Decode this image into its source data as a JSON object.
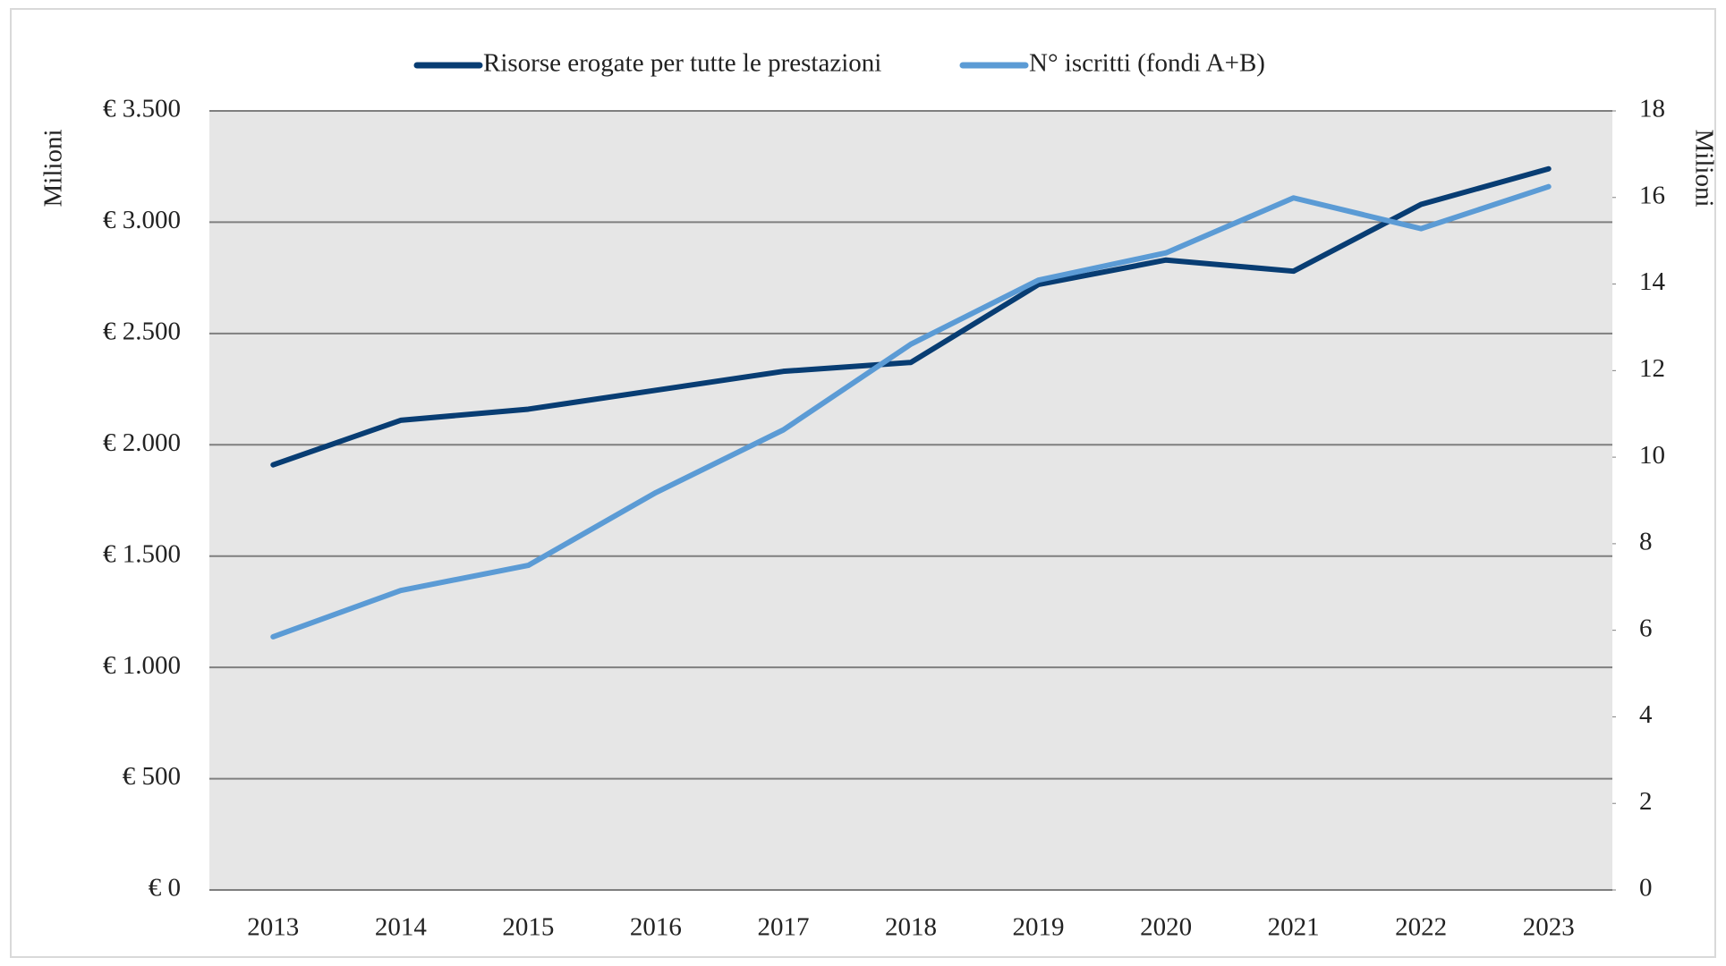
{
  "chart_data": {
    "type": "line",
    "categories": [
      "2013",
      "2014",
      "2015",
      "2016",
      "2017",
      "2018",
      "2019",
      "2020",
      "2021",
      "2022",
      "2023"
    ],
    "series": [
      {
        "name": "Risorse erogate per tutte le prestazioni",
        "color": "#083d73",
        "values": [
          1910,
          2110,
          2160,
          2245,
          2330,
          2370,
          2720,
          2830,
          2780,
          3080,
          3240
        ]
      },
      {
        "name": "N° iscritti (fondi A+B)",
        "color": "#5b9bd5",
        "axis": "y2",
        "values": [
          5.85,
          6.92,
          7.5,
          9.18,
          10.63,
          12.61,
          14.09,
          14.72,
          15.99,
          15.28,
          16.25
        ]
      }
    ],
    "ylabel": "Milioni",
    "y2label": "Milioni",
    "ylim": [
      0,
      3500
    ],
    "yticks": [
      {
        "value": 0,
        "label": "€ 0"
      },
      {
        "value": 500,
        "label": "€ 500"
      },
      {
        "value": 1000,
        "label": "€ 1.000"
      },
      {
        "value": 1500,
        "label": "€ 1.500"
      },
      {
        "value": 2000,
        "label": "€ 2.000"
      },
      {
        "value": 2500,
        "label": "€ 2.500"
      },
      {
        "value": 3000,
        "label": "€ 3.000"
      },
      {
        "value": 3500,
        "label": "€ 3.500"
      }
    ],
    "y2lim": [
      0,
      18
    ],
    "y2ticks": [
      0,
      2,
      4,
      6,
      8,
      10,
      12,
      14,
      16,
      18
    ],
    "grid": true,
    "legend": "top"
  }
}
